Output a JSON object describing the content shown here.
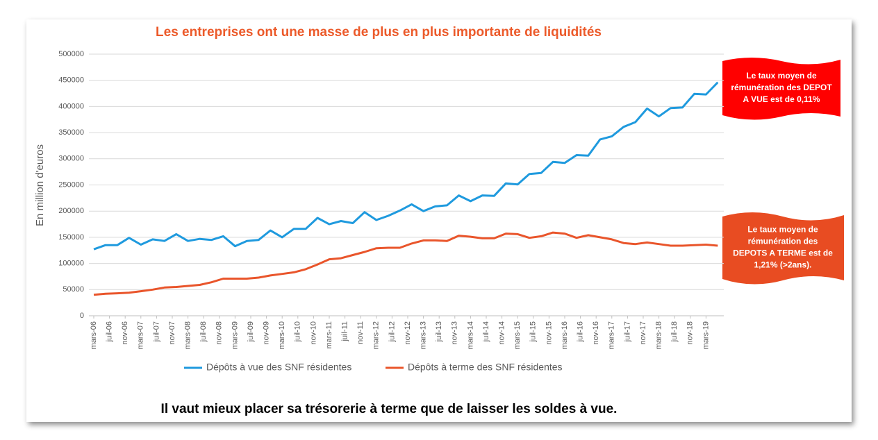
{
  "chart_data": {
    "type": "line",
    "title": "Les entreprises ont une masse de plus en plus importante de liquidités",
    "y_label": "En million d'euros",
    "x": [
      "2006-03",
      "2006-06",
      "2006-09",
      "2006-12",
      "2007-03",
      "2007-06",
      "2007-09",
      "2007-12",
      "2008-03",
      "2008-06",
      "2008-09",
      "2008-12",
      "2009-03",
      "2009-06",
      "2009-09",
      "2009-12",
      "2010-03",
      "2010-06",
      "2010-09",
      "2010-12",
      "2011-03",
      "2011-06",
      "2011-09",
      "2011-12",
      "2012-03",
      "2012-06",
      "2012-09",
      "2012-12",
      "2013-03",
      "2013-06",
      "2013-09",
      "2013-12",
      "2014-03",
      "2014-06",
      "2014-09",
      "2014-12",
      "2015-03",
      "2015-06",
      "2015-09",
      "2015-12",
      "2016-03",
      "2016-06",
      "2016-09",
      "2016-12",
      "2017-03",
      "2017-06",
      "2017-09",
      "2017-12",
      "2018-03",
      "2018-06",
      "2018-09",
      "2018-12",
      "2019-03",
      "2019-06"
    ],
    "series": [
      {
        "name": "Dépôts à vue des SNF résidentes",
        "color": "#1f9ade",
        "values": [
          127000,
          135000,
          135000,
          149000,
          136000,
          146000,
          143000,
          156000,
          143000,
          147000,
          145000,
          152000,
          133000,
          143000,
          145000,
          163000,
          150000,
          166000,
          166000,
          187000,
          175000,
          181000,
          177000,
          198000,
          183000,
          191000,
          201000,
          213000,
          200000,
          209000,
          211000,
          230000,
          219000,
          230000,
          229000,
          253000,
          251000,
          271000,
          273000,
          294000,
          292000,
          307000,
          306000,
          337000,
          343000,
          361000,
          370000,
          396000,
          381000,
          397000,
          398000,
          424000,
          423000,
          446000
        ]
      },
      {
        "name": "Dépôts à terme des SNF résidentes",
        "color": "#e9552b",
        "values": [
          40000,
          42000,
          43000,
          44000,
          47000,
          50000,
          54000,
          55000,
          57000,
          59000,
          64000,
          71000,
          71000,
          71000,
          73000,
          77000,
          80000,
          83000,
          89000,
          98000,
          108000,
          110000,
          116000,
          122000,
          129000,
          130000,
          130000,
          138000,
          144000,
          144000,
          143000,
          153000,
          151000,
          148000,
          148000,
          157000,
          156000,
          149000,
          152000,
          159000,
          157000,
          149000,
          154000,
          150000,
          146000,
          139000,
          137000,
          140000,
          137000,
          134000,
          134000,
          135000,
          136000,
          134000
        ]
      }
    ],
    "xlim": [
      "2006-03",
      "2019-07"
    ],
    "xticks": [
      {
        "value": "2006-03",
        "label": "mars-06"
      },
      {
        "value": "2006-07",
        "label": "juil-06"
      },
      {
        "value": "2006-11",
        "label": "nov-06"
      },
      {
        "value": "2007-03",
        "label": "mars-07"
      },
      {
        "value": "2007-07",
        "label": "juil-07"
      },
      {
        "value": "2007-11",
        "label": "nov-07"
      },
      {
        "value": "2008-03",
        "label": "mars-08"
      },
      {
        "value": "2008-07",
        "label": "juil-08"
      },
      {
        "value": "2008-11",
        "label": "nov-08"
      },
      {
        "value": "2009-03",
        "label": "mars-09"
      },
      {
        "value": "2009-07",
        "label": "juil-09"
      },
      {
        "value": "2009-11",
        "label": "nov-09"
      },
      {
        "value": "2010-03",
        "label": "mars-10"
      },
      {
        "value": "2010-07",
        "label": "juil-10"
      },
      {
        "value": "2010-11",
        "label": "nov-10"
      },
      {
        "value": "2011-03",
        "label": "mars-11"
      },
      {
        "value": "2011-07",
        "label": "juil-11"
      },
      {
        "value": "2011-11",
        "label": "nov-11"
      },
      {
        "value": "2012-03",
        "label": "mars-12"
      },
      {
        "value": "2012-07",
        "label": "juil-12"
      },
      {
        "value": "2012-11",
        "label": "nov-12"
      },
      {
        "value": "2013-03",
        "label": "mars-13"
      },
      {
        "value": "2013-07",
        "label": "juil-13"
      },
      {
        "value": "2013-11",
        "label": "nov-13"
      },
      {
        "value": "2014-03",
        "label": "mars-14"
      },
      {
        "value": "2014-07",
        "label": "juil-14"
      },
      {
        "value": "2014-11",
        "label": "nov-14"
      },
      {
        "value": "2015-03",
        "label": "mars-15"
      },
      {
        "value": "2015-07",
        "label": "juil-15"
      },
      {
        "value": "2015-11",
        "label": "nov-15"
      },
      {
        "value": "2016-03",
        "label": "mars-16"
      },
      {
        "value": "2016-07",
        "label": "juil-16"
      },
      {
        "value": "2016-11",
        "label": "nov-16"
      },
      {
        "value": "2017-03",
        "label": "mars-17"
      },
      {
        "value": "2017-07",
        "label": "juil-17"
      },
      {
        "value": "2017-11",
        "label": "nov-17"
      },
      {
        "value": "2018-03",
        "label": "mars-18"
      },
      {
        "value": "2018-07",
        "label": "juil-18"
      },
      {
        "value": "2018-11",
        "label": "nov-18"
      },
      {
        "value": "2019-03",
        "label": "mars-19"
      }
    ],
    "ylim": [
      0,
      500000
    ],
    "yticks": [
      0,
      50000,
      100000,
      150000,
      200000,
      250000,
      300000,
      350000,
      400000,
      450000,
      500000
    ],
    "grid": true,
    "legend": "bottom",
    "annotations": [
      {
        "lines": [
          "Le taux moyen de",
          "rémunération des DEPOT",
          "A VUE est de 0,11%"
        ],
        "color": "#ff0000"
      },
      {
        "lines": [
          "Le taux moyen de",
          "rémunération des",
          "DEPOTS A TERME est de",
          "1,21% (>2ans)."
        ],
        "color": "#e84c22"
      }
    ],
    "footnote": "Il vaut mieux placer sa trésorerie à terme que de laisser les soldes à vue."
  }
}
